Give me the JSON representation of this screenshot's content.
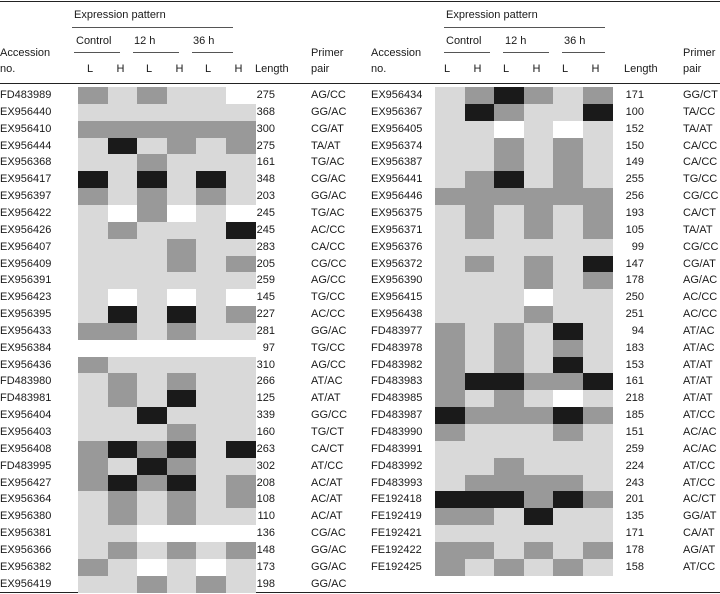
{
  "headers": {
    "expression_pattern": "Expression pattern",
    "accession_1": "Accession",
    "accession_2": "no.",
    "control": "Control",
    "h12": "12 h",
    "h36": "36 h",
    "low": "L",
    "high": "H",
    "length": "Length",
    "primer_1": "Primer",
    "primer_2": "pair"
  },
  "colors": {
    "0": "#ffffff",
    "1": "#d9d9d9",
    "2": "#999999",
    "3": "#1a1a1a"
  },
  "left_rows": [
    {
      "acc": "FD483989",
      "len": "275",
      "primer": "AG/CC",
      "levels": [
        2,
        1,
        2,
        1,
        1,
        0
      ]
    },
    {
      "acc": "EX956440",
      "len": "368",
      "primer": "GG/AC",
      "levels": [
        1,
        1,
        1,
        1,
        1,
        1
      ]
    },
    {
      "acc": "EX956410",
      "len": "300",
      "primer": "CG/AT",
      "levels": [
        2,
        2,
        2,
        2,
        2,
        2
      ]
    },
    {
      "acc": "EX956444",
      "len": "275",
      "primer": "TA/AT",
      "levels": [
        1,
        3,
        1,
        2,
        1,
        2
      ]
    },
    {
      "acc": "EX956368",
      "len": "161",
      "primer": "TG/AC",
      "levels": [
        1,
        1,
        2,
        1,
        1,
        1
      ]
    },
    {
      "acc": "EX956417",
      "len": "348",
      "primer": "CG/AC",
      "levels": [
        3,
        1,
        3,
        1,
        3,
        1
      ]
    },
    {
      "acc": "EX956397",
      "len": "203",
      "primer": "GG/AC",
      "levels": [
        2,
        1,
        2,
        1,
        2,
        1
      ]
    },
    {
      "acc": "EX956422",
      "len": "245",
      "primer": "TG/AC",
      "levels": [
        1,
        0,
        2,
        0,
        1,
        0
      ]
    },
    {
      "acc": "EX956426",
      "len": "245",
      "primer": "AC/CC",
      "levels": [
        1,
        2,
        1,
        1,
        1,
        3
      ]
    },
    {
      "acc": "EX956407",
      "len": "283",
      "primer": "CA/CC",
      "levels": [
        1,
        1,
        1,
        2,
        1,
        1
      ]
    },
    {
      "acc": "EX956409",
      "len": "205",
      "primer": "CG/CC",
      "levels": [
        1,
        1,
        1,
        2,
        1,
        2
      ]
    },
    {
      "acc": "EX956391",
      "len": "259",
      "primer": "AG/CC",
      "levels": [
        1,
        1,
        1,
        1,
        1,
        1
      ]
    },
    {
      "acc": "EX956423",
      "len": "145",
      "primer": "TG/CC",
      "levels": [
        1,
        0,
        1,
        0,
        1,
        0
      ]
    },
    {
      "acc": "EX956395",
      "len": "227",
      "primer": "AC/CC",
      "levels": [
        1,
        3,
        1,
        3,
        1,
        2
      ]
    },
    {
      "acc": "EX956433",
      "len": "281",
      "primer": "GG/AC",
      "levels": [
        2,
        2,
        1,
        2,
        1,
        1
      ]
    },
    {
      "acc": "EX956384",
      "len": "97",
      "primer": "TG/CC",
      "levels": [
        0,
        0,
        0,
        0,
        0,
        0
      ]
    },
    {
      "acc": "EX956436",
      "len": "310",
      "primer": "AG/CC",
      "levels": [
        2,
        1,
        1,
        1,
        1,
        1
      ]
    },
    {
      "acc": "FD483980",
      "len": "266",
      "primer": "AT/AC",
      "levels": [
        1,
        2,
        1,
        2,
        1,
        1
      ]
    },
    {
      "acc": "FD483981",
      "len": "125",
      "primer": "AT/AT",
      "levels": [
        1,
        2,
        1,
        3,
        1,
        1
      ]
    },
    {
      "acc": "EX956404",
      "len": "339",
      "primer": "GG/CC",
      "levels": [
        1,
        1,
        3,
        1,
        1,
        1
      ]
    },
    {
      "acc": "EX956403",
      "len": "160",
      "primer": "TG/CT",
      "levels": [
        1,
        1,
        1,
        2,
        1,
        1
      ]
    },
    {
      "acc": "EX956408",
      "len": "263",
      "primer": "CA/CT",
      "levels": [
        2,
        3,
        2,
        3,
        1,
        3
      ]
    },
    {
      "acc": "FD483995",
      "len": "302",
      "primer": "AT/CC",
      "levels": [
        2,
        1,
        3,
        2,
        1,
        1
      ]
    },
    {
      "acc": "EX956427",
      "len": "208",
      "primer": "AC/AT",
      "levels": [
        2,
        3,
        2,
        3,
        1,
        2
      ]
    },
    {
      "acc": "EX956364",
      "len": "108",
      "primer": "AC/AT",
      "levels": [
        1,
        2,
        1,
        2,
        1,
        2
      ]
    },
    {
      "acc": "EX956380",
      "len": "110",
      "primer": "AC/AT",
      "levels": [
        1,
        2,
        1,
        2,
        1,
        1
      ]
    },
    {
      "acc": "EX956381",
      "len": "136",
      "primer": "CG/AC",
      "levels": [
        1,
        1,
        0,
        0,
        0,
        0
      ]
    },
    {
      "acc": "EX956366",
      "len": "148",
      "primer": "GG/AC",
      "levels": [
        1,
        2,
        1,
        2,
        1,
        2
      ]
    },
    {
      "acc": "EX956382",
      "len": "173",
      "primer": "GG/AC",
      "levels": [
        2,
        1,
        0,
        1,
        0,
        1
      ]
    },
    {
      "acc": "EX956419",
      "len": "198",
      "primer": "GG/AC",
      "levels": [
        1,
        1,
        2,
        1,
        2,
        1
      ]
    }
  ],
  "right_rows": [
    {
      "acc": "EX956434",
      "len": "171",
      "primer": "GG/CT",
      "levels": [
        1,
        2,
        3,
        2,
        1,
        2
      ]
    },
    {
      "acc": "EX956367",
      "len": "100",
      "primer": "TA/CC",
      "levels": [
        1,
        3,
        2,
        1,
        1,
        3
      ]
    },
    {
      "acc": "EX956405",
      "len": "152",
      "primer": "TA/AT",
      "levels": [
        1,
        1,
        0,
        1,
        0,
        1
      ]
    },
    {
      "acc": "EX956374",
      "len": "150",
      "primer": "CA/CC",
      "levels": [
        1,
        1,
        2,
        1,
        2,
        1
      ]
    },
    {
      "acc": "EX956387",
      "len": "149",
      "primer": "CA/CC",
      "levels": [
        1,
        1,
        2,
        1,
        2,
        1
      ]
    },
    {
      "acc": "EX956441",
      "len": "255",
      "primer": "TG/CC",
      "levels": [
        1,
        2,
        3,
        1,
        2,
        1
      ]
    },
    {
      "acc": "EX956446",
      "len": "256",
      "primer": "CG/CC",
      "levels": [
        2,
        2,
        2,
        2,
        2,
        2
      ]
    },
    {
      "acc": "EX956375",
      "len": "193",
      "primer": "CA/CT",
      "levels": [
        1,
        2,
        1,
        2,
        1,
        2
      ]
    },
    {
      "acc": "EX956371",
      "len": "105",
      "primer": "TA/AT",
      "levels": [
        1,
        2,
        1,
        2,
        1,
        2
      ]
    },
    {
      "acc": "EX956376",
      "len": "99",
      "primer": "CG/CC",
      "levels": [
        1,
        1,
        1,
        1,
        1,
        1
      ]
    },
    {
      "acc": "EX956372",
      "len": "147",
      "primer": "CG/AT",
      "levels": [
        1,
        2,
        1,
        2,
        1,
        3
      ]
    },
    {
      "acc": "EX956390",
      "len": "178",
      "primer": "AG/AC",
      "levels": [
        1,
        1,
        1,
        2,
        1,
        2
      ]
    },
    {
      "acc": "EX956415",
      "len": "250",
      "primer": "AC/CC",
      "levels": [
        1,
        1,
        1,
        0,
        1,
        1
      ]
    },
    {
      "acc": "EX956438",
      "len": "251",
      "primer": "AC/CC",
      "levels": [
        1,
        1,
        1,
        2,
        1,
        1
      ]
    },
    {
      "acc": "FD483977",
      "len": "94",
      "primer": "AT/AC",
      "levels": [
        2,
        1,
        2,
        1,
        3,
        1
      ]
    },
    {
      "acc": "FD483978",
      "len": "183",
      "primer": "AT/AC",
      "levels": [
        2,
        1,
        2,
        1,
        2,
        1
      ]
    },
    {
      "acc": "FD483982",
      "len": "153",
      "primer": "AT/AT",
      "levels": [
        2,
        1,
        2,
        1,
        3,
        1
      ]
    },
    {
      "acc": "FD483983",
      "len": "161",
      "primer": "AT/AT",
      "levels": [
        2,
        3,
        3,
        2,
        2,
        3
      ]
    },
    {
      "acc": "FD483985",
      "len": "218",
      "primer": "AT/AT",
      "levels": [
        2,
        1,
        2,
        1,
        0,
        1
      ]
    },
    {
      "acc": "FD483987",
      "len": "185",
      "primer": "AT/CC",
      "levels": [
        3,
        2,
        2,
        2,
        3,
        2
      ]
    },
    {
      "acc": "FD483990",
      "len": "151",
      "primer": "AC/AC",
      "levels": [
        2,
        1,
        1,
        1,
        2,
        1
      ]
    },
    {
      "acc": "FD483991",
      "len": "259",
      "primer": "AC/AC",
      "levels": [
        1,
        1,
        1,
        1,
        1,
        1
      ]
    },
    {
      "acc": "FD483992",
      "len": "224",
      "primer": "AT/CC",
      "levels": [
        1,
        1,
        2,
        1,
        1,
        1
      ]
    },
    {
      "acc": "FD483993",
      "len": "243",
      "primer": "AT/CC",
      "levels": [
        1,
        2,
        2,
        2,
        2,
        1
      ]
    },
    {
      "acc": "FE192418",
      "len": "201",
      "primer": "AC/CT",
      "levels": [
        3,
        3,
        3,
        2,
        3,
        2
      ]
    },
    {
      "acc": "FE192419",
      "len": "135",
      "primer": "GG/AT",
      "levels": [
        2,
        2,
        1,
        3,
        1,
        1
      ]
    },
    {
      "acc": "FE192421",
      "len": "171",
      "primer": "CA/AT",
      "levels": [
        1,
        1,
        1,
        1,
        1,
        1
      ]
    },
    {
      "acc": "FE192422",
      "len": "178",
      "primer": "AG/AT",
      "levels": [
        2,
        2,
        1,
        2,
        1,
        2
      ]
    },
    {
      "acc": "FE192425",
      "len": "158",
      "primer": "AT/CC",
      "levels": [
        2,
        1,
        2,
        1,
        2,
        1
      ]
    }
  ]
}
